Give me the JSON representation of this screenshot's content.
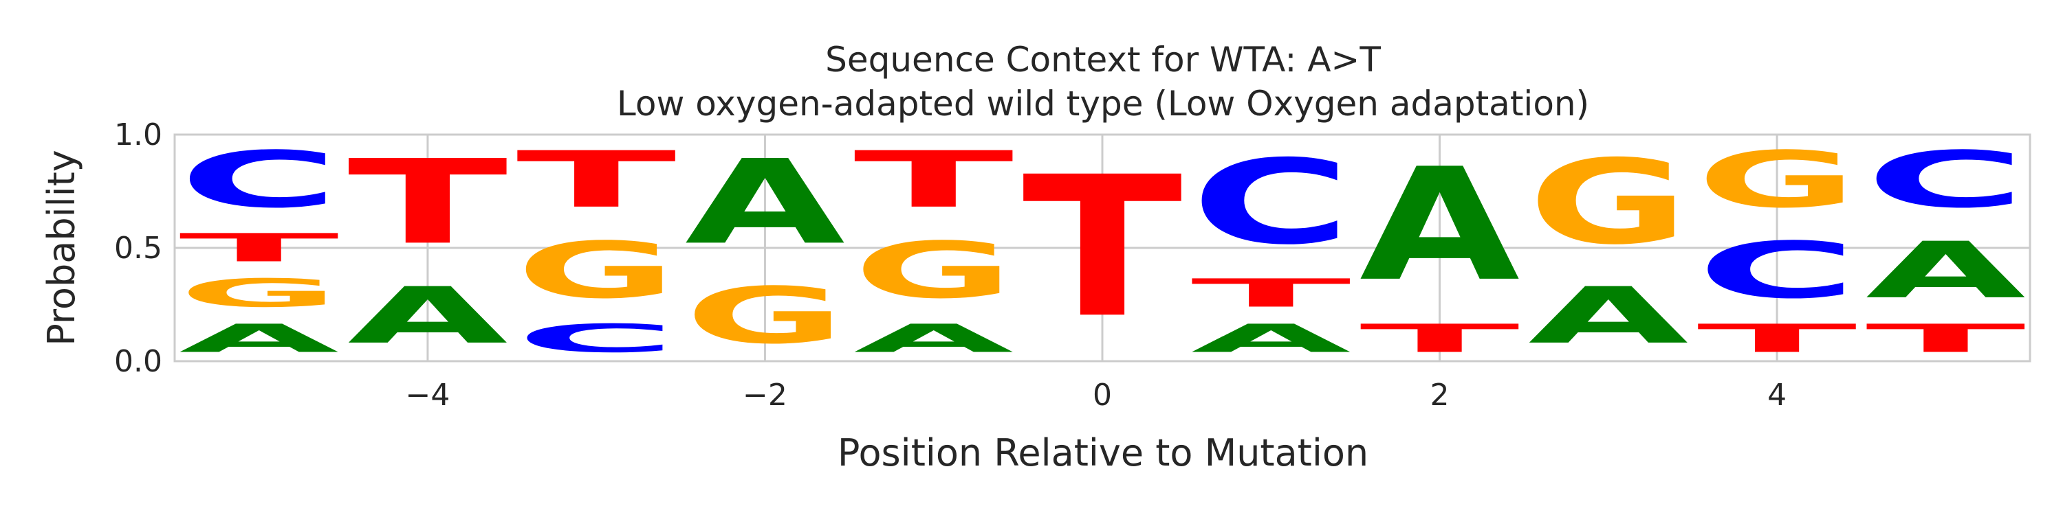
{
  "chart_data": {
    "type": "sequence-logo",
    "title": "Sequence Context for WTA: A>T",
    "subtitle": "Low oxygen-adapted wild type (Low Oxygen adaptation)",
    "xlabel": "Position Relative to Mutation",
    "ylabel": "Probability",
    "xlim": [
      -5.5,
      5.5
    ],
    "ylim": [
      0,
      1
    ],
    "xticks": [
      -4,
      -2,
      0,
      2,
      4
    ],
    "xtick_labels": [
      "−4",
      "−2",
      "0",
      "2",
      "4"
    ],
    "yticks": [
      0,
      0.5,
      1
    ],
    "ytick_labels": [
      "0.0",
      "0.5",
      "1.0"
    ],
    "grid": true,
    "colors": {
      "A": "#008000",
      "C": "#0000ff",
      "G": "#ffa500",
      "T": "#ff0000"
    },
    "positions": [
      {
        "pos": -5,
        "stack": [
          {
            "base": "A",
            "value": 0.2
          },
          {
            "base": "G",
            "value": 0.2
          },
          {
            "base": "T",
            "value": 0.2
          },
          {
            "base": "C",
            "value": 0.4
          }
        ]
      },
      {
        "pos": -4,
        "stack": [
          {
            "base": "A",
            "value": 0.4
          },
          {
            "base": "T",
            "value": 0.6
          }
        ]
      },
      {
        "pos": -3,
        "stack": [
          {
            "base": "C",
            "value": 0.2
          },
          {
            "base": "G",
            "value": 0.4
          },
          {
            "base": "T",
            "value": 0.4
          }
        ]
      },
      {
        "pos": -2,
        "stack": [
          {
            "base": "G",
            "value": 0.4
          },
          {
            "base": "A",
            "value": 0.6
          }
        ]
      },
      {
        "pos": -1,
        "stack": [
          {
            "base": "A",
            "value": 0.2
          },
          {
            "base": "G",
            "value": 0.4
          },
          {
            "base": "T",
            "value": 0.4
          }
        ]
      },
      {
        "pos": 0,
        "stack": [
          {
            "base": "T",
            "value": 1.0
          }
        ]
      },
      {
        "pos": 1,
        "stack": [
          {
            "base": "A",
            "value": 0.2
          },
          {
            "base": "T",
            "value": 0.2
          },
          {
            "base": "C",
            "value": 0.6
          }
        ]
      },
      {
        "pos": 2,
        "stack": [
          {
            "base": "T",
            "value": 0.2
          },
          {
            "base": "A",
            "value": 0.8
          }
        ]
      },
      {
        "pos": 3,
        "stack": [
          {
            "base": "A",
            "value": 0.4
          },
          {
            "base": "G",
            "value": 0.6
          }
        ]
      },
      {
        "pos": 4,
        "stack": [
          {
            "base": "T",
            "value": 0.2
          },
          {
            "base": "C",
            "value": 0.4
          },
          {
            "base": "G",
            "value": 0.4
          }
        ]
      },
      {
        "pos": 5,
        "stack": [
          {
            "base": "T",
            "value": 0.2
          },
          {
            "base": "A",
            "value": 0.4
          },
          {
            "base": "C",
            "value": 0.4
          }
        ]
      }
    ]
  }
}
